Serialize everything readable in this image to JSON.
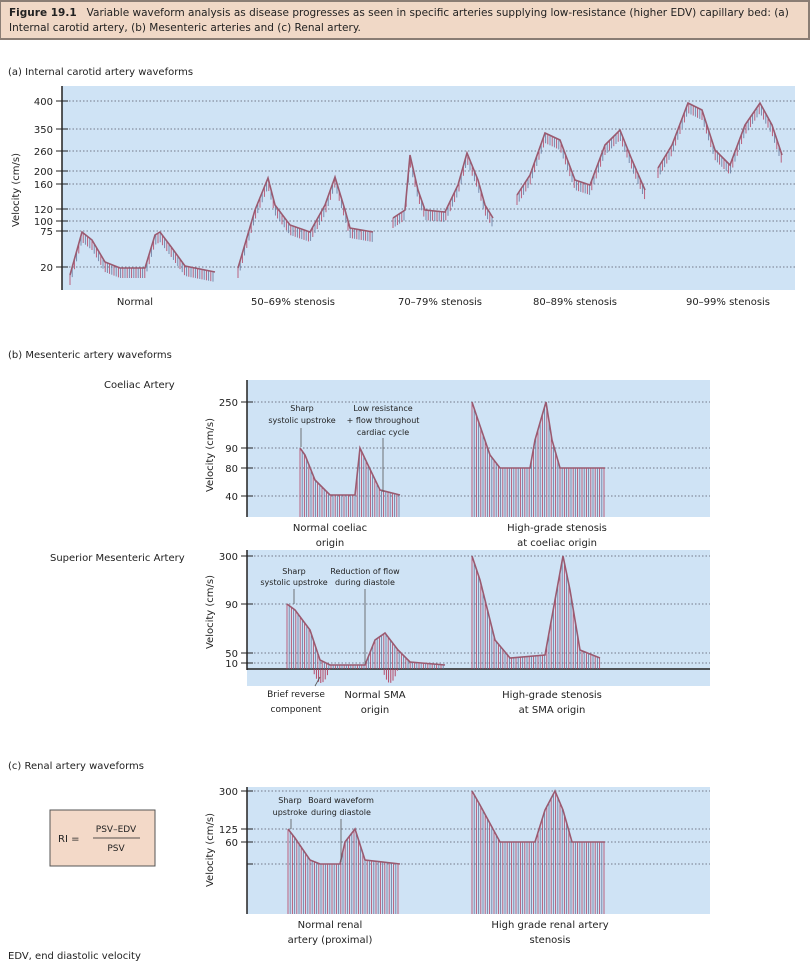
{
  "figure": {
    "number": "Figure 19.1",
    "caption": "Variable waveform analysis as disease progresses as seen in specific arteries supplying low-resistance (higher EDV) capillary bed: (a) Internal carotid artery, (b) Mesenteric arteries and (c) Renal artery."
  },
  "panel_a": {
    "title": "(a)  Internal carotid artery waveforms",
    "ylabel": "Velocity (cm/s)",
    "yticks": [
      "400",
      "350",
      "260",
      "200",
      "160",
      "120",
      "100",
      "75",
      "20"
    ],
    "categories": [
      "Normal",
      "50–69% stenosis",
      "70–79% stenosis",
      "80–89% stenosis",
      "90–99% stenosis"
    ]
  },
  "panel_b": {
    "title": "(b)  Mesenteric artery waveforms",
    "coeliac": {
      "label": "Coeliac Artery",
      "ylabel": "Velocity (cm/s)",
      "yticks": [
        "250",
        "90",
        "80",
        "40"
      ],
      "annotations": [
        "Sharp",
        "systolic upstroke",
        "Low resistance",
        "+ flow throughout",
        "cardiac cycle"
      ],
      "normal_label": [
        "Normal coeliac",
        "origin"
      ],
      "stenosis_label": [
        "High-grade stenosis",
        "at coeliac origin"
      ]
    },
    "sma": {
      "label": "Superior Mesenteric Artery",
      "ylabel": "Velocity (cm/s)",
      "yticks": [
        "300",
        "90",
        "50",
        "10"
      ],
      "annotations": [
        "Sharp",
        "systolic upstroke",
        "Reduction of flow",
        "during diastole"
      ],
      "reverse_label": [
        "Brief reverse",
        "component"
      ],
      "normal_label": [
        "Normal SMA",
        "origin"
      ],
      "stenosis_label": [
        "High-grade stenosis",
        "at SMA origin"
      ]
    }
  },
  "panel_c": {
    "title": "(c)  Renal artery waveforms",
    "ylabel": "Velocity (cm/s)",
    "yticks": [
      "300",
      "125",
      "60"
    ],
    "annotations": [
      "Sharp",
      "upstroke",
      "Board waveform",
      "during diastole"
    ],
    "normal_label": [
      "Normal renal",
      "artery (proximal)"
    ],
    "stenosis_label": [
      "High grade renal artery",
      "stenosis"
    ],
    "formula": {
      "lhs": "RI =",
      "numerator": "PSV–EDV",
      "denominator": "PSV"
    }
  },
  "footnote": "EDV, end diastolic velocity",
  "colors": {
    "chart_bg": "#cfe3f5",
    "header_bg": "#f0d8c6",
    "formula_bg": "#f3d9c8",
    "trace_red": "#b23a5a",
    "trace_blue": "#5f7298"
  }
}
